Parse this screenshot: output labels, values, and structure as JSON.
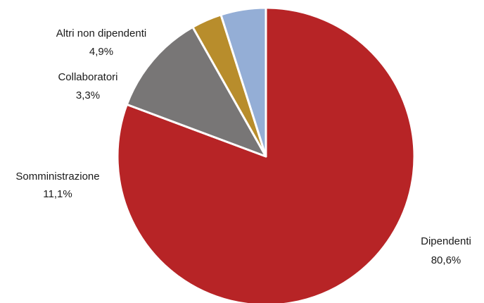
{
  "chart_data": {
    "type": "pie",
    "title": "",
    "start_at": "12 o'clock",
    "direction": "clockwise",
    "slices": [
      {
        "label": "Dipendenti",
        "value": 80.6,
        "value_label": "80,6%",
        "color": "#b72426"
      },
      {
        "label": "Somministrazione",
        "value": 11.1,
        "value_label": "11,1%",
        "color": "#787676"
      },
      {
        "label": "Collaboratori",
        "value": 3.3,
        "value_label": "3,3%",
        "color": "#b88d2c"
      },
      {
        "label": "Altri non dipendenti",
        "value": 4.9,
        "value_label": "4,9%",
        "color": "#94aed6"
      }
    ],
    "labels_position": "outside"
  }
}
